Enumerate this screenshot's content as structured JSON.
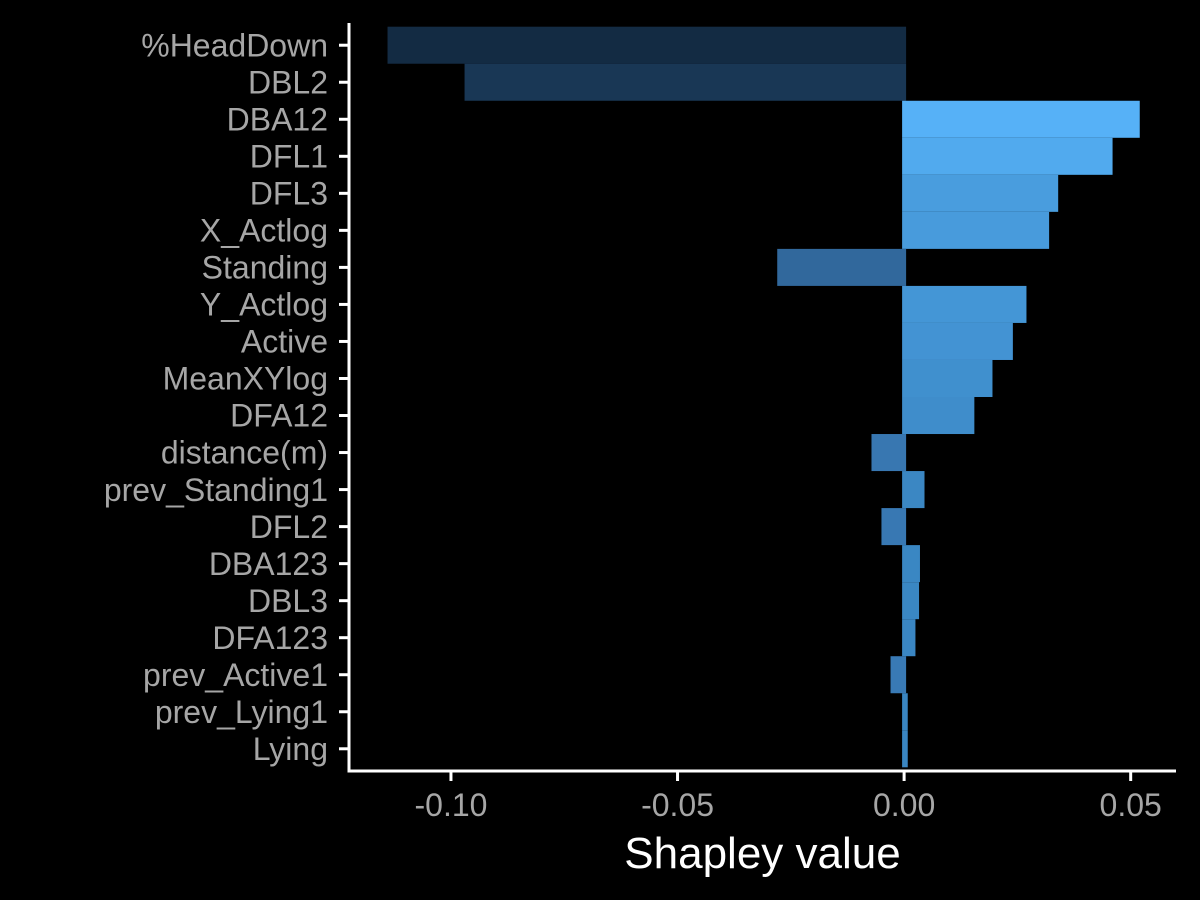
{
  "chart_data": {
    "type": "bar",
    "orientation": "horizontal",
    "title": "",
    "xlabel": "Shapley value",
    "ylabel": "",
    "xlim": [
      -0.1225,
      0.06
    ],
    "xticks": [
      -0.1,
      -0.05,
      0.0,
      0.05
    ],
    "xtick_labels": [
      "-0.10",
      "-0.05",
      "0.00",
      "0.05"
    ],
    "grid": false,
    "legend": "none",
    "categories": [
      "%HeadDown",
      "DBL2",
      "DBA12",
      "DFL1",
      "DFL3",
      "X_Actlog",
      "Standing",
      "Y_Actlog",
      "Active",
      "MeanXYlog",
      "DFA12",
      "distance(m)",
      "prev_Standing1",
      "DFL2",
      "DBA123",
      "DBL3",
      "DFA123",
      "prev_Active1",
      "prev_Lying1",
      "Lying"
    ],
    "values": [
      -0.114,
      -0.097,
      0.052,
      0.046,
      0.034,
      0.032,
      -0.028,
      0.027,
      0.024,
      0.0195,
      0.0155,
      -0.0072,
      0.0045,
      -0.005,
      0.0035,
      0.0033,
      0.0025,
      -0.003,
      0.0008,
      0.0008
    ],
    "colors": {
      "background": "#000000",
      "axis": "#ffffff",
      "tick_label": "#a6a6a6",
      "title": "#ffffff",
      "bar_max_positive": "#56b1f7",
      "bar_mid_positive": "#3a86c2",
      "bar_negative_small": "#3a7cb8",
      "bar_negative_mid": "#31689c",
      "bar_negative_max": "#132b43"
    }
  }
}
